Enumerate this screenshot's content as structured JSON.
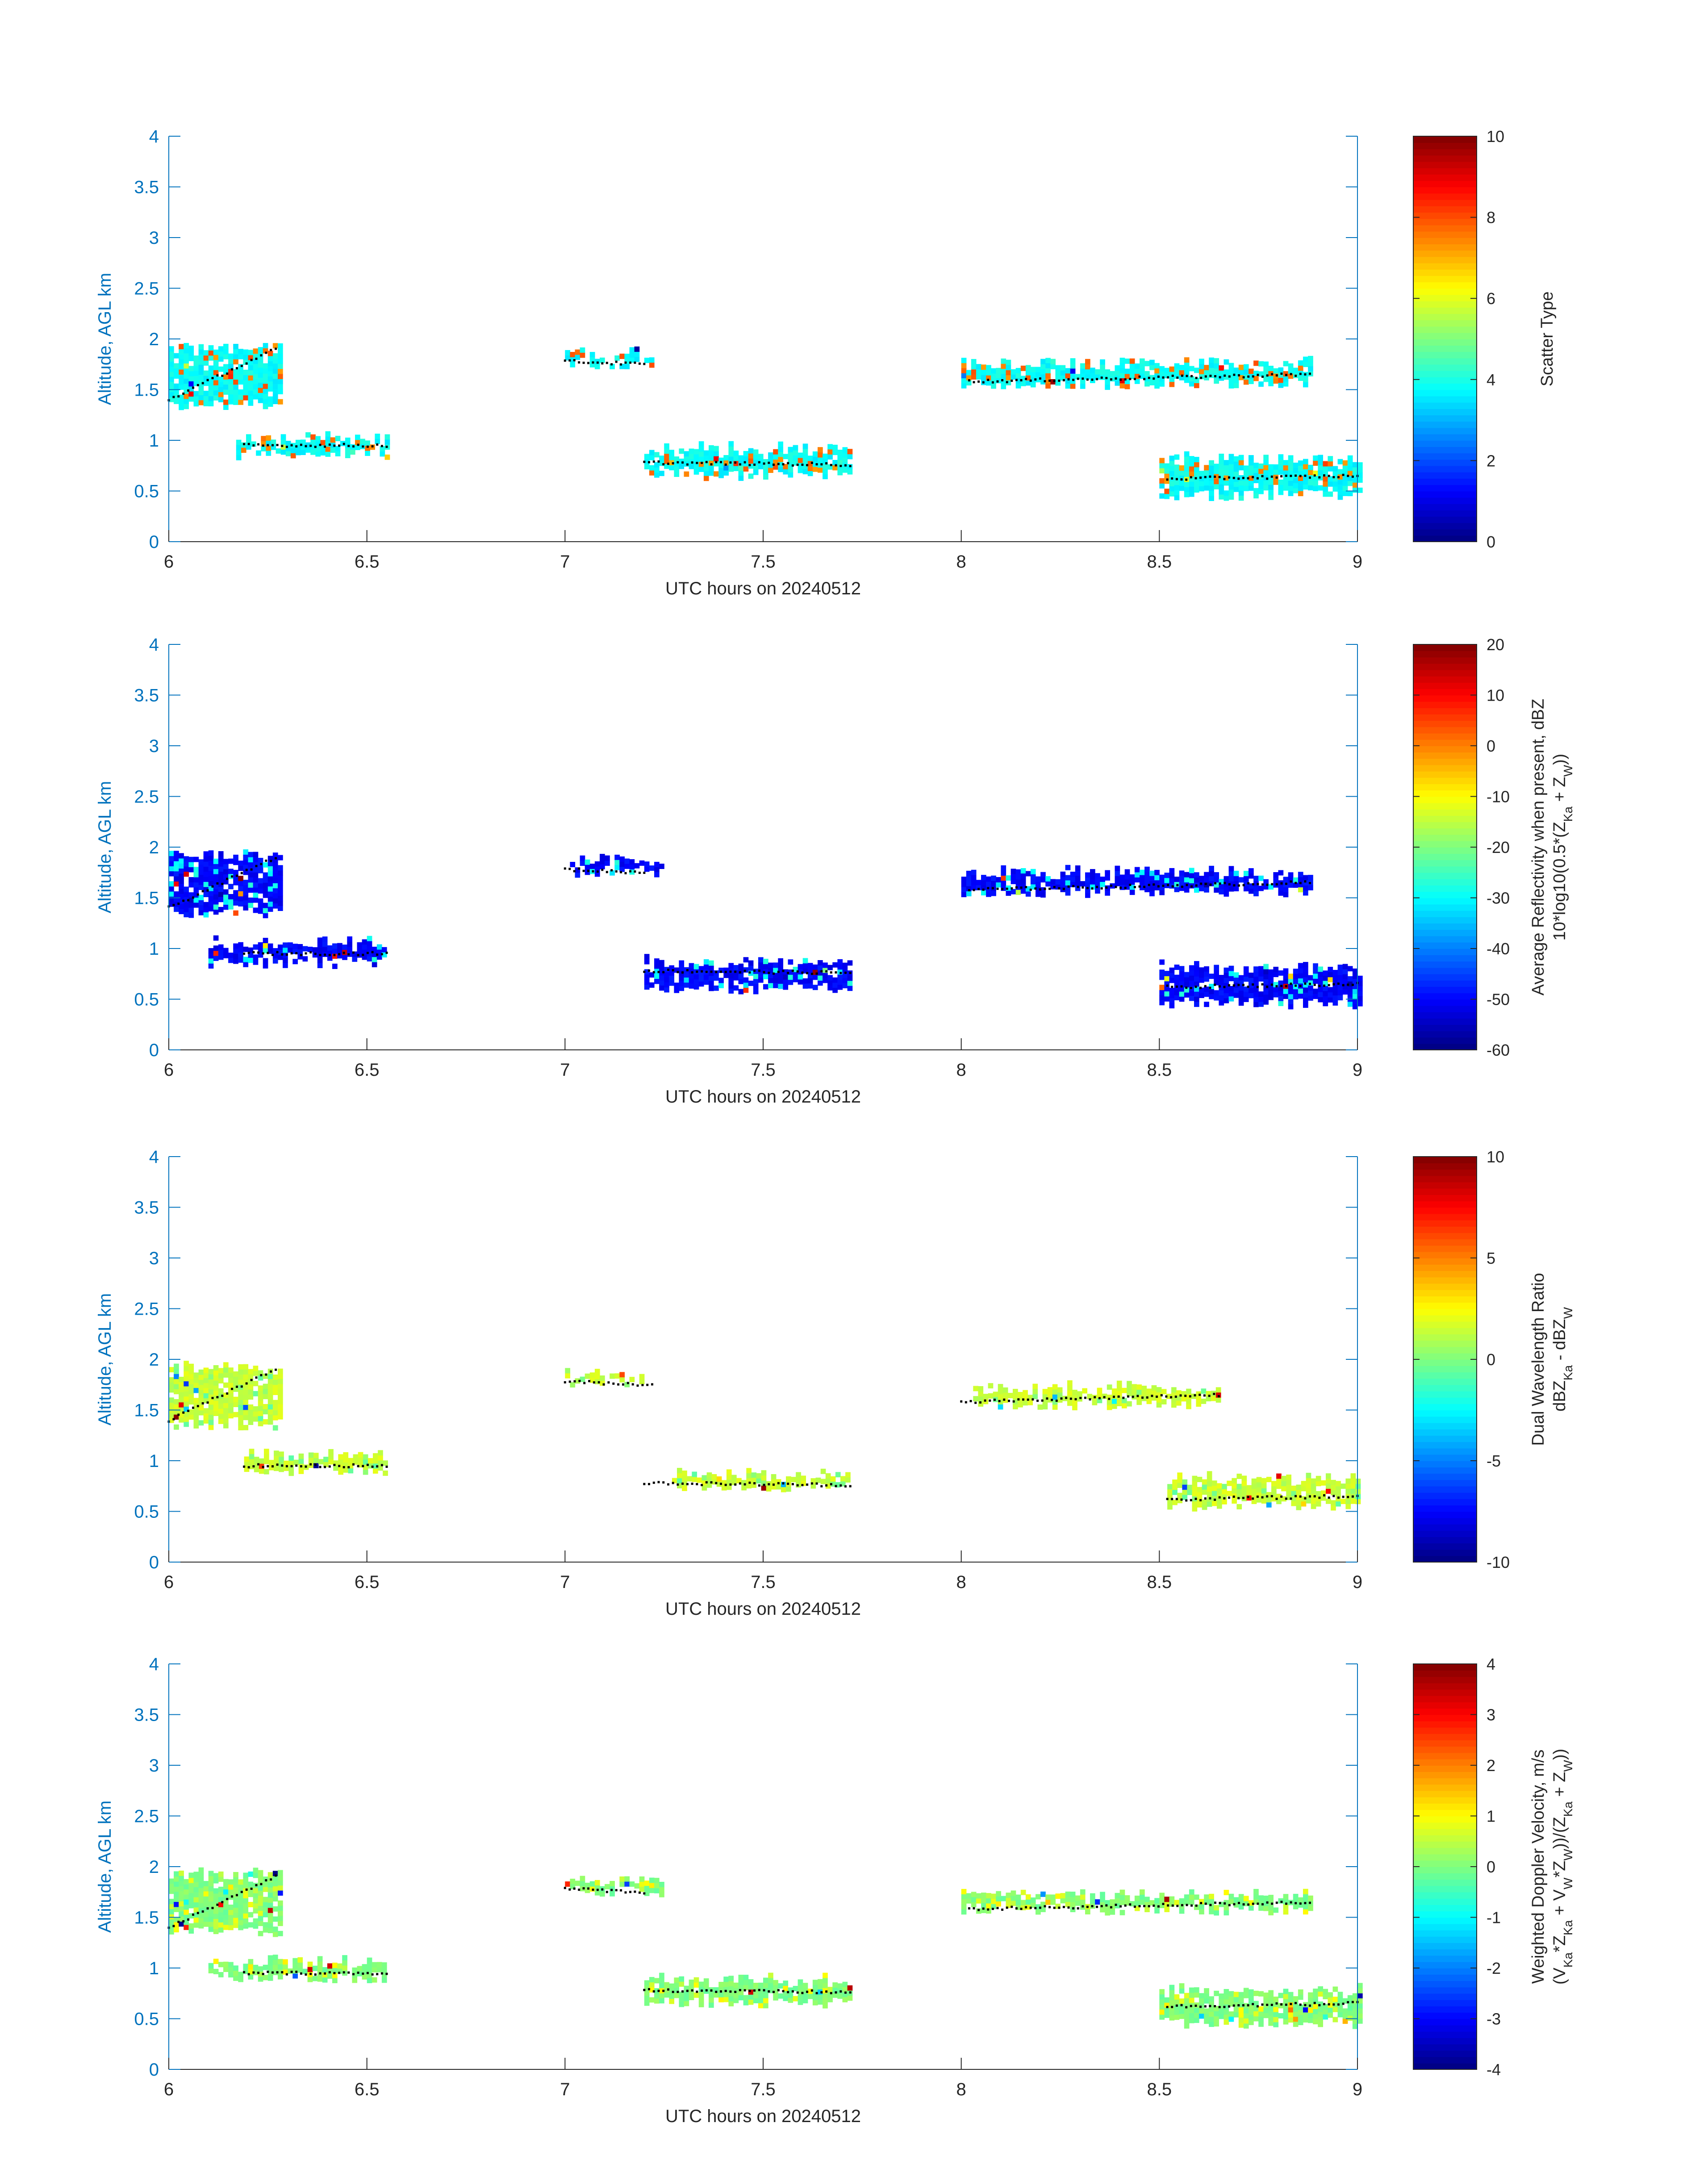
{
  "chart_data": [
    {
      "type": "heatmap",
      "ylabel": "Altitude, AGL km",
      "xlabel": "UTC hours on 20240512",
      "xlim": [
        6,
        9
      ],
      "ylim": [
        0,
        4
      ],
      "x_ticks": [
        "6",
        "6.5",
        "7",
        "7.5",
        "8",
        "8.5",
        "9"
      ],
      "y_ticks": [
        "0",
        "0.5",
        "1",
        "1.5",
        "2",
        "2.5",
        "3",
        "3.5",
        "4"
      ],
      "colorbar": {
        "label_lines": [
          "Scatter Type"
        ],
        "range": [
          0,
          10
        ],
        "ticks": [
          "0",
          "2",
          "4",
          "6",
          "8",
          "10"
        ],
        "colormap": "jet"
      },
      "dominant_value": 3.8,
      "secondary_value": 7.6,
      "cloud_layers": [
        {
          "x_start": 6.0,
          "x_end": 6.28,
          "y_low": 1.3,
          "y_high": 1.95
        },
        {
          "x_start": 6.17,
          "x_end": 6.55,
          "y_low": 0.8,
          "y_high": 1.05
        },
        {
          "x_start": 7.0,
          "x_end": 7.22,
          "y_low": 1.7,
          "y_high": 1.9
        },
        {
          "x_start": 7.2,
          "x_end": 7.72,
          "y_low": 0.6,
          "y_high": 0.95
        },
        {
          "x_start": 8.0,
          "x_end": 8.88,
          "y_low": 1.5,
          "y_high": 1.8
        },
        {
          "x_start": 8.5,
          "x_end": 9.0,
          "y_low": 0.4,
          "y_high": 0.85
        }
      ],
      "cloud_base_dots": [
        {
          "x_start": 6.0,
          "x_end": 6.27,
          "y_start": 1.4,
          "y_end": 1.9
        },
        {
          "x_start": 6.19,
          "x_end": 6.55,
          "y_start": 0.95,
          "y_end": 0.95
        },
        {
          "x_start": 7.0,
          "x_end": 7.2,
          "y_start": 1.78,
          "y_end": 1.75
        },
        {
          "x_start": 7.2,
          "x_end": 7.72,
          "y_start": 0.78,
          "y_end": 0.76
        },
        {
          "x_start": 8.02,
          "x_end": 8.88,
          "y_start": 1.58,
          "y_end": 1.65
        },
        {
          "x_start": 8.52,
          "x_end": 9.0,
          "y_start": 0.62,
          "y_end": 0.65
        }
      ]
    },
    {
      "type": "heatmap",
      "ylabel": "Altitude, AGL km",
      "xlabel": "UTC hours on 20240512",
      "xlim": [
        6,
        9
      ],
      "ylim": [
        0,
        4
      ],
      "x_ticks": [
        "6",
        "6.5",
        "7",
        "7.5",
        "8",
        "8.5",
        "9"
      ],
      "y_ticks": [
        "0",
        "0.5",
        "1",
        "1.5",
        "2",
        "2.5",
        "3",
        "3.5",
        "4"
      ],
      "colorbar": {
        "label_lines": [
          "Average Reflectivity when present, dBZ",
          "10*log10(0.5*(Z",
          "Ka",
          " + Z",
          "W",
          "))"
        ],
        "range": [
          -60,
          20
        ],
        "ticks": [
          "-60",
          "-50",
          "-40",
          "-30",
          "-20",
          "-10",
          "0",
          "10",
          "20"
        ],
        "colormap": "jet"
      },
      "dominant_value": -50,
      "secondary_value": -30,
      "cloud_layers": [
        {
          "x_start": 6.0,
          "x_end": 6.28,
          "y_low": 1.3,
          "y_high": 1.95
        },
        {
          "x_start": 6.1,
          "x_end": 6.55,
          "y_low": 0.8,
          "y_high": 1.1
        },
        {
          "x_start": 7.0,
          "x_end": 7.25,
          "y_low": 1.7,
          "y_high": 1.9
        },
        {
          "x_start": 7.2,
          "x_end": 7.72,
          "y_low": 0.55,
          "y_high": 0.9
        },
        {
          "x_start": 8.0,
          "x_end": 8.88,
          "y_low": 1.5,
          "y_high": 1.78
        },
        {
          "x_start": 8.5,
          "x_end": 9.0,
          "y_low": 0.4,
          "y_high": 0.85
        }
      ],
      "cloud_base_dots": [
        {
          "x_start": 6.0,
          "x_end": 6.27,
          "y_start": 1.4,
          "y_end": 1.9
        },
        {
          "x_start": 6.19,
          "x_end": 6.55,
          "y_start": 0.95,
          "y_end": 0.95
        },
        {
          "x_start": 7.0,
          "x_end": 7.2,
          "y_start": 1.78,
          "y_end": 1.75
        },
        {
          "x_start": 7.2,
          "x_end": 7.72,
          "y_start": 0.78,
          "y_end": 0.76
        },
        {
          "x_start": 8.02,
          "x_end": 8.88,
          "y_start": 1.58,
          "y_end": 1.65
        },
        {
          "x_start": 8.52,
          "x_end": 9.0,
          "y_start": 0.62,
          "y_end": 0.65
        }
      ]
    },
    {
      "type": "heatmap",
      "ylabel": "Altitude, AGL km",
      "xlabel": "UTC hours on 20240512",
      "xlim": [
        6,
        9
      ],
      "ylim": [
        0,
        4
      ],
      "x_ticks": [
        "6",
        "6.5",
        "7",
        "7.5",
        "8",
        "8.5",
        "9"
      ],
      "y_ticks": [
        "0",
        "0.5",
        "1",
        "1.5",
        "2",
        "2.5",
        "3",
        "3.5",
        "4"
      ],
      "colorbar": {
        "label_lines": [
          "Dual Wavelength Ratio",
          "dBZ",
          "Ka",
          " - dBZ",
          "W"
        ],
        "range": [
          -10,
          10
        ],
        "ticks": [
          "-10",
          "-5",
          "0",
          "5",
          "10"
        ],
        "colormap": "jet"
      },
      "dominant_value": 1.5,
      "secondary_value": 0,
      "cloud_layers": [
        {
          "x_start": 6.0,
          "x_end": 6.28,
          "y_low": 1.3,
          "y_high": 1.95
        },
        {
          "x_start": 6.19,
          "x_end": 6.55,
          "y_low": 0.85,
          "y_high": 1.08
        },
        {
          "x_start": 7.0,
          "x_end": 7.2,
          "y_low": 1.72,
          "y_high": 1.88
        },
        {
          "x_start": 7.27,
          "x_end": 7.72,
          "y_low": 0.68,
          "y_high": 0.9
        },
        {
          "x_start": 8.03,
          "x_end": 8.65,
          "y_low": 1.5,
          "y_high": 1.75
        },
        {
          "x_start": 8.52,
          "x_end": 9.0,
          "y_low": 0.5,
          "y_high": 0.85
        }
      ],
      "cloud_base_dots": [
        {
          "x_start": 6.0,
          "x_end": 6.27,
          "y_start": 1.4,
          "y_end": 1.9
        },
        {
          "x_start": 6.19,
          "x_end": 6.55,
          "y_start": 0.95,
          "y_end": 0.95
        },
        {
          "x_start": 7.0,
          "x_end": 7.22,
          "y_start": 1.78,
          "y_end": 1.75
        },
        {
          "x_start": 7.2,
          "x_end": 7.72,
          "y_start": 0.78,
          "y_end": 0.76
        },
        {
          "x_start": 8.0,
          "x_end": 8.65,
          "y_start": 1.58,
          "y_end": 1.65
        },
        {
          "x_start": 8.52,
          "x_end": 9.0,
          "y_start": 0.62,
          "y_end": 0.65
        }
      ]
    },
    {
      "type": "heatmap",
      "ylabel": "Altitude, AGL km",
      "xlabel": "UTC hours on 20240512",
      "xlim": [
        6,
        9
      ],
      "ylim": [
        0,
        4
      ],
      "x_ticks": [
        "6",
        "6.5",
        "7",
        "7.5",
        "8",
        "8.5",
        "9"
      ],
      "y_ticks": [
        "0",
        "0.5",
        "1",
        "1.5",
        "2",
        "2.5",
        "3",
        "3.5",
        "4"
      ],
      "colorbar": {
        "label_lines": [
          "Weighted Doppler Velocity, m/s",
          "(V",
          "Ka",
          "*Z",
          "Ka",
          " + V",
          "W",
          "*Z",
          "W",
          "))/(Z",
          "Ka",
          " + Z",
          "W",
          "))"
        ],
        "range": [
          -4,
          4
        ],
        "ticks": [
          "-4",
          "-3",
          "-2",
          "-1",
          "0",
          "1",
          "2",
          "3",
          "4"
        ],
        "colormap": "jet"
      },
      "dominant_value": 0,
      "secondary_value": 0.8,
      "cloud_layers": [
        {
          "x_start": 6.0,
          "x_end": 6.28,
          "y_low": 1.3,
          "y_high": 1.95
        },
        {
          "x_start": 6.1,
          "x_end": 6.55,
          "y_low": 0.85,
          "y_high": 1.1
        },
        {
          "x_start": 7.0,
          "x_end": 7.25,
          "y_low": 1.7,
          "y_high": 1.9
        },
        {
          "x_start": 7.2,
          "x_end": 7.72,
          "y_low": 0.6,
          "y_high": 0.92
        },
        {
          "x_start": 8.0,
          "x_end": 8.88,
          "y_low": 1.52,
          "y_high": 1.75
        },
        {
          "x_start": 8.5,
          "x_end": 9.0,
          "y_low": 0.4,
          "y_high": 0.82
        }
      ],
      "cloud_base_dots": [
        {
          "x_start": 6.0,
          "x_end": 6.27,
          "y_start": 1.4,
          "y_end": 1.9
        },
        {
          "x_start": 6.19,
          "x_end": 6.55,
          "y_start": 0.95,
          "y_end": 0.95
        },
        {
          "x_start": 7.0,
          "x_end": 7.2,
          "y_start": 1.78,
          "y_end": 1.75
        },
        {
          "x_start": 7.2,
          "x_end": 7.72,
          "y_start": 0.78,
          "y_end": 0.76
        },
        {
          "x_start": 8.02,
          "x_end": 8.88,
          "y_start": 1.58,
          "y_end": 1.65
        },
        {
          "x_start": 8.52,
          "x_end": 9.0,
          "y_start": 0.62,
          "y_end": 0.65
        }
      ]
    }
  ]
}
